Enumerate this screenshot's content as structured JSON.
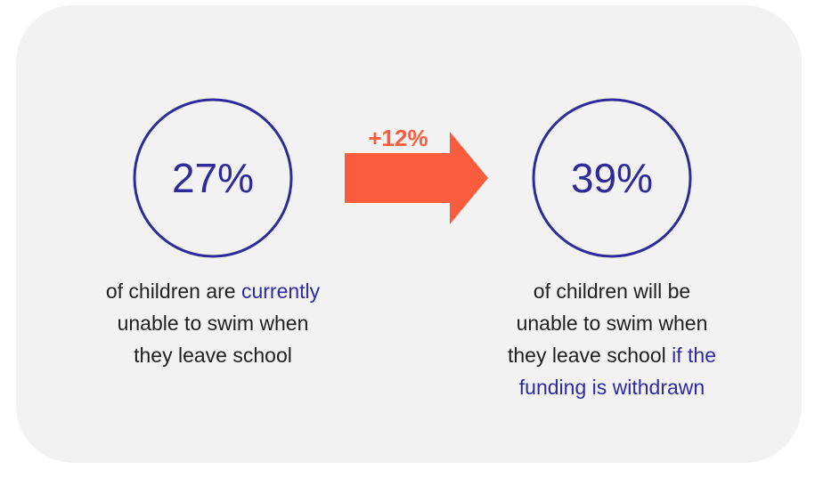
{
  "left": {
    "value": "27%",
    "caption": [
      "of children are ",
      "currently",
      "unable to swim when",
      "they leave school"
    ]
  },
  "change": "+12%",
  "right": {
    "value": "39%",
    "caption": [
      "of children will be",
      "unable to swim when",
      "they leave school ",
      "if the",
      "funding is withdrawn"
    ]
  }
}
